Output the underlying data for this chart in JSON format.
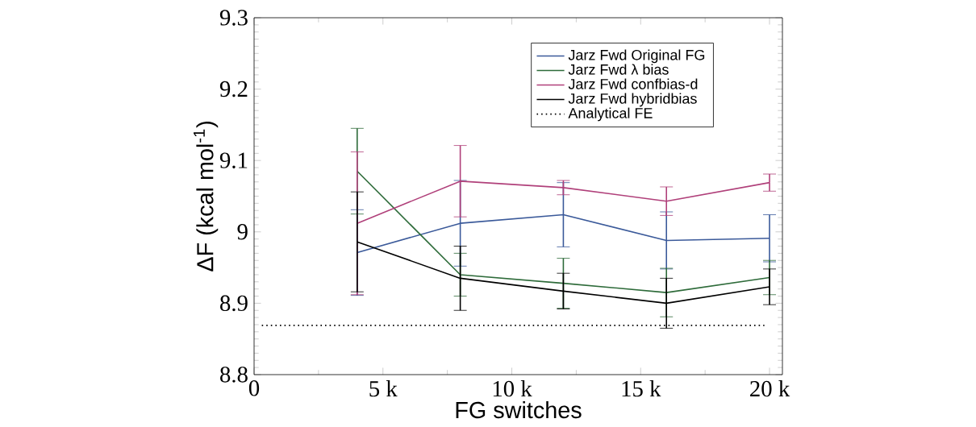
{
  "chart_data": {
    "type": "line",
    "xlabel": "FG switches",
    "ylabel": "ΔF (kcal mol$^{-1}$)",
    "x": [
      4000,
      8000,
      12000,
      16000,
      20000
    ],
    "series": [
      {
        "name": "Jarz Fwd Original FG",
        "color": "#3b5a9a",
        "values": [
          8.971,
          9.012,
          9.024,
          8.988,
          8.991
        ],
        "errors": [
          0.06,
          0.06,
          0.045,
          0.04,
          0.033
        ]
      },
      {
        "name": "Jarz Fwd λ bias",
        "color": "#2e6b3a",
        "values": [
          9.085,
          8.94,
          8.928,
          8.915,
          8.936
        ],
        "errors": [
          0.06,
          0.03,
          0.035,
          0.034,
          0.024
        ]
      },
      {
        "name": "Jarz Fwd confbias-d",
        "color": "#b0407a",
        "values": [
          9.012,
          9.071,
          9.062,
          9.043,
          9.069
        ],
        "errors": [
          0.1,
          0.05,
          0.01,
          0.02,
          0.012
        ]
      },
      {
        "name": "Jarz Fwd hybridbias",
        "color": "#000000",
        "values": [
          8.986,
          8.935,
          8.917,
          8.9,
          8.923
        ],
        "errors": [
          0.07,
          0.045,
          0.025,
          0.035,
          0.025
        ]
      },
      {
        "name": "Analytical FE",
        "color": "#000000",
        "x": [
          300,
          19800
        ],
        "values": [
          8.869,
          8.869
        ],
        "line_style": "dotted"
      }
    ],
    "xlim": [
      0,
      20500
    ],
    "ylim": [
      8.8,
      9.3
    ],
    "xticks": [
      0,
      {
        "value": 5000,
        "label": "5 k"
      },
      {
        "value": 10000,
        "label": "10 k"
      },
      {
        "value": 15000,
        "label": "15 k"
      },
      {
        "value": 20000,
        "label": "20 k"
      }
    ],
    "yticks": [
      {
        "value": 8.8,
        "label": "8.8"
      },
      8.9,
      9,
      9.1,
      9.2,
      {
        "value": 9.3,
        "label": "9.3"
      }
    ],
    "legend": "top right",
    "marker": "none",
    "grid": false
  }
}
